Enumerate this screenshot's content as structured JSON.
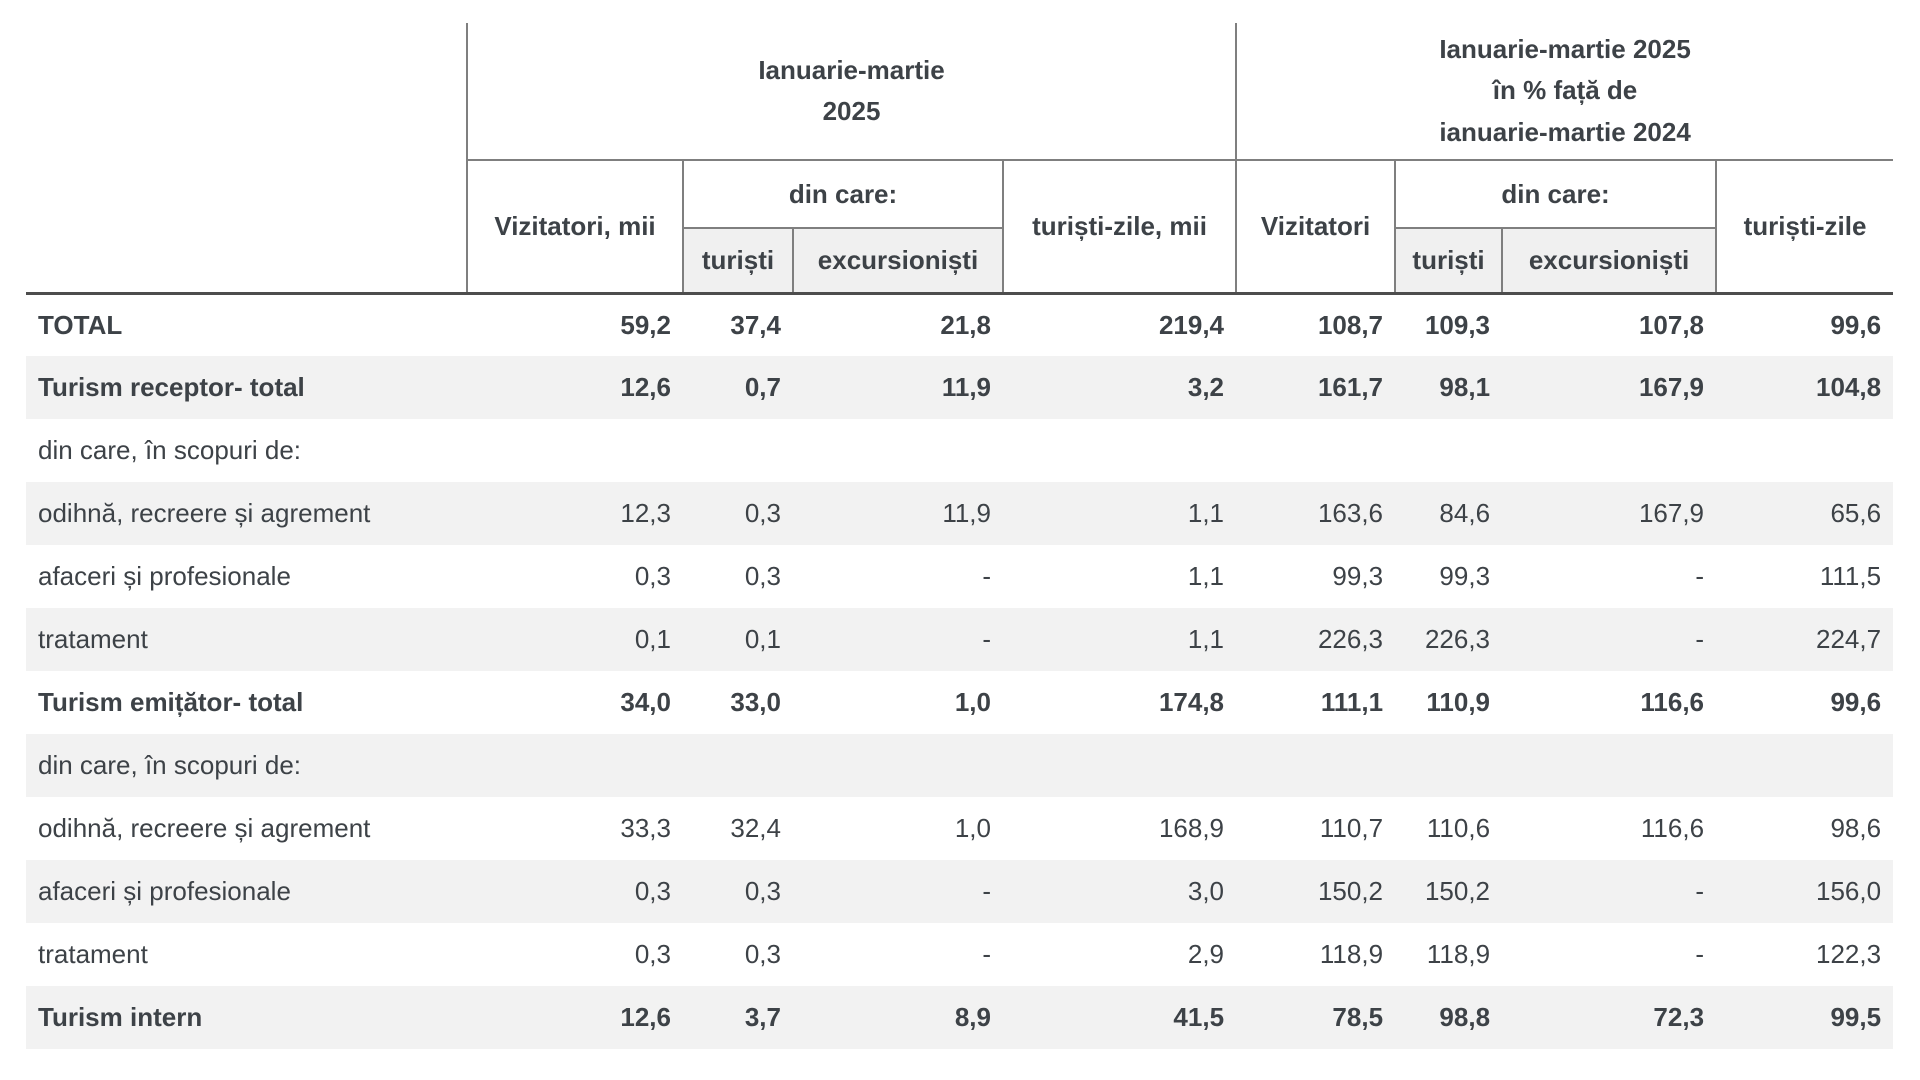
{
  "colors": {
    "text": "#3d4247",
    "zebra_row_bg": "#f2f2f2",
    "header_subcell_bg": "#f0f0f0",
    "header_border": "#7f7f7f",
    "header_separator": "#4d4d4d",
    "page_bg": "#ffffff"
  },
  "chart_data": {
    "type": "table",
    "header": {
      "group_period": "Ianuarie-martie\n2025",
      "group_percent": "Ianuarie-martie 2025\nîn % față de\nianuarie-martie 2024",
      "col_vizitatori_mii": "Vizitatori, mii",
      "col_din_care_left": "din care:",
      "col_turisti_left": "turiști",
      "col_excursionisti_left": "excursioniști",
      "col_turisti_zile_mii": "turiști-zile, mii",
      "col_vizitatori": "Vizitatori",
      "col_din_care_right": "din care:",
      "col_turisti_right": "turiști",
      "col_excursionisti_right": "excursioniști",
      "col_turisti_zile": "turiști-zile"
    },
    "columns": [
      "Vizitatori, mii",
      "turiști",
      "excursioniști",
      "turiști-zile, mii",
      "Vizitatori",
      "turiști",
      "excursioniști",
      "turiști-zile"
    ],
    "rows": [
      {
        "label": "TOTAL",
        "bold": true,
        "values": [
          "59,2",
          "37,4",
          "21,8",
          "219,4",
          "108,7",
          "109,3",
          "107,8",
          "99,6"
        ]
      },
      {
        "label": "Turism receptor- total",
        "bold": true,
        "values": [
          "12,6",
          "0,7",
          "11,9",
          "3,2",
          "161,7",
          "98,1",
          "167,9",
          "104,8"
        ]
      },
      {
        "label": "din care, în scopuri de:",
        "bold": false,
        "values": [
          "",
          "",
          "",
          "",
          "",
          "",
          "",
          ""
        ]
      },
      {
        "label": "odihnă, recreere și agrement",
        "bold": false,
        "values": [
          "12,3",
          "0,3",
          "11,9",
          "1,1",
          "163,6",
          "84,6",
          "167,9",
          "65,6"
        ]
      },
      {
        "label": "afaceri și profesionale",
        "bold": false,
        "values": [
          "0,3",
          "0,3",
          "-",
          "1,1",
          "99,3",
          "99,3",
          "-",
          "111,5"
        ]
      },
      {
        "label": "tratament",
        "bold": false,
        "values": [
          "0,1",
          "0,1",
          "-",
          "1,1",
          "226,3",
          "226,3",
          "-",
          "224,7"
        ]
      },
      {
        "label": "Turism emițător- total",
        "bold": true,
        "values": [
          "34,0",
          "33,0",
          "1,0",
          "174,8",
          "111,1",
          "110,9",
          "116,6",
          "99,6"
        ]
      },
      {
        "label": "din care, în scopuri de:",
        "bold": false,
        "values": [
          "",
          "",
          "",
          "",
          "",
          "",
          "",
          ""
        ]
      },
      {
        "label": "odihnă, recreere și agrement",
        "bold": false,
        "values": [
          "33,3",
          "32,4",
          "1,0",
          "168,9",
          "110,7",
          "110,6",
          "116,6",
          "98,6"
        ]
      },
      {
        "label": "afaceri și profesionale",
        "bold": false,
        "values": [
          "0,3",
          "0,3",
          "-",
          "3,0",
          "150,2",
          "150,2",
          "-",
          "156,0"
        ]
      },
      {
        "label": "tratament",
        "bold": false,
        "values": [
          "0,3",
          "0,3",
          "-",
          "2,9",
          "118,9",
          "118,9",
          "-",
          "122,3"
        ]
      },
      {
        "label": "Turism intern",
        "bold": true,
        "values": [
          "12,6",
          "3,7",
          "8,9",
          "41,5",
          "78,5",
          "98,8",
          "72,3",
          "99,5"
        ]
      }
    ]
  }
}
